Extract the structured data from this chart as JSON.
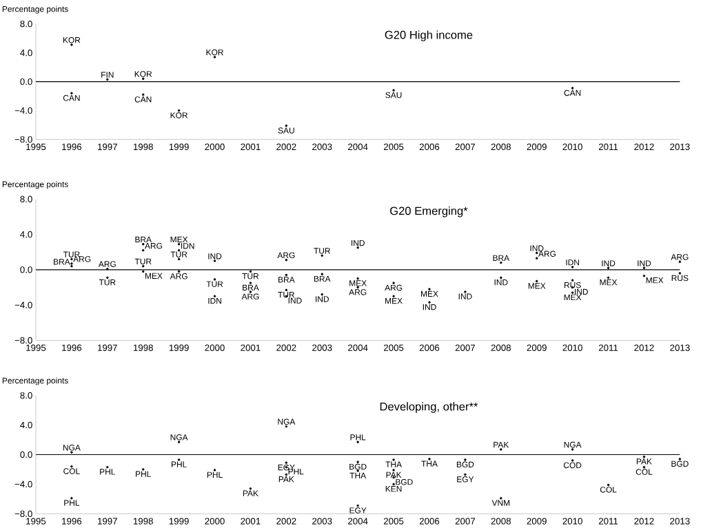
{
  "chart_data": [
    {
      "type": "scatter",
      "title": "G20 High income",
      "ylabel": "Percentage points",
      "marker": "circle",
      "x": [
        1996,
        1996,
        1997,
        1998,
        1998,
        1999,
        2000,
        2002,
        2005,
        2010
      ],
      "values": [
        5.1,
        -1.6,
        0.3,
        0.4,
        -1.8,
        -4.0,
        3.4,
        -6.1,
        -1.2,
        -0.9
      ],
      "xlim": [
        1995,
        2013
      ],
      "xticks": [
        1995,
        1996,
        1997,
        1998,
        1999,
        2000,
        2001,
        2002,
        2003,
        2004,
        2005,
        2006,
        2007,
        2008,
        2009,
        2010,
        2011,
        2012,
        2013
      ],
      "ylim": [
        -8,
        8
      ],
      "yticks": [
        {
          "value": -8,
          "label": "−8.0"
        },
        {
          "value": -4,
          "label": "−4.0"
        },
        {
          "value": 0,
          "label": "0.0"
        },
        {
          "value": 4,
          "label": "4.0"
        },
        {
          "value": 8,
          "label": "8.0"
        }
      ],
      "ref_lines": [
        {
          "axis": "y",
          "value": 0,
          "color": "#000000"
        }
      ],
      "annotations": [
        "KOR",
        "CAN",
        "FIN",
        "KOR",
        "CAN",
        "KOR",
        "KOR",
        "SAU",
        "SAU",
        "CAN"
      ]
    },
    {
      "type": "scatter",
      "title": "G20 Emerging*",
      "ylabel": "Percentage points",
      "marker": "circle",
      "x": [
        1996,
        1996,
        1996,
        1997,
        1997,
        1998,
        1998,
        1998,
        1998,
        1999,
        1999,
        1999,
        1999,
        2000,
        2000,
        2000,
        2001,
        2001,
        2001,
        2002,
        2002,
        2002,
        2002,
        2003,
        2003,
        2003,
        2004,
        2004,
        2004,
        2005,
        2005,
        2006,
        2006,
        2007,
        2008,
        2008,
        2009,
        2009,
        2009,
        2010,
        2010,
        2010,
        2010,
        2011,
        2011,
        2012,
        2012,
        2013,
        2013
      ],
      "values": [
        1.2,
        0.7,
        0.4,
        0.1,
        -0.9,
        2.9,
        2.2,
        0.4,
        -0.2,
        2.9,
        2.2,
        1.2,
        -0.2,
        1.0,
        -1.1,
        -3.0,
        -0.2,
        -1.5,
        -2.5,
        1.1,
        -0.6,
        -2.3,
        -3.0,
        1.6,
        -0.5,
        -2.8,
        2.5,
        -1.0,
        -2.0,
        -1.5,
        -3.0,
        -2.2,
        -3.7,
        -2.5,
        0.8,
        -0.9,
        1.9,
        1.3,
        -1.3,
        0.3,
        -1.2,
        -2.0,
        -2.6,
        0.2,
        -0.9,
        0.2,
        -0.7,
        0.9,
        -0.4
      ],
      "xlim": [
        1995,
        2013
      ],
      "xticks": [
        1995,
        1996,
        1997,
        1998,
        1999,
        2000,
        2001,
        2002,
        2003,
        2004,
        2005,
        2006,
        2007,
        2008,
        2009,
        2010,
        2011,
        2012,
        2013
      ],
      "ylim": [
        -8,
        8
      ],
      "yticks": [
        {
          "value": -8,
          "label": "−8.0"
        },
        {
          "value": -4,
          "label": "−4.0"
        },
        {
          "value": 0,
          "label": "0.0"
        },
        {
          "value": 4,
          "label": "4.0"
        },
        {
          "value": 8,
          "label": "8.0"
        }
      ],
      "ref_lines": [
        {
          "axis": "y",
          "value": 0,
          "color": "#000000"
        }
      ],
      "annotations": [
        "TUR",
        "ARG",
        "BRA",
        "ARG",
        "TUR",
        "BRA",
        "ARG",
        "TUR",
        "MEX",
        "MEX",
        "IDN",
        "TUR",
        "ARG",
        "IND",
        "TUR",
        "IDN",
        "TUR",
        "BRA",
        "ARG",
        "ARG",
        "BRA",
        "TUR",
        "IND",
        "TUR",
        "BRA",
        "IND",
        "IND",
        "MEX",
        "ARG",
        "ARG",
        "MEX",
        "MEX",
        "IND",
        "IND",
        "BRA",
        "IND",
        "IND",
        "ARG",
        "MEX",
        "IDN",
        "RUS",
        "IND",
        "MEX",
        "IND",
        "MEX",
        "IND",
        "MEX",
        "ARG",
        "RUS"
      ]
    },
    {
      "type": "scatter",
      "title": "Developing, other**",
      "ylabel": "Percentage points",
      "marker": "circle",
      "x": [
        1996,
        1996,
        1996,
        1997,
        1998,
        1999,
        1999,
        2000,
        2001,
        2002,
        2002,
        2002,
        2002,
        2004,
        2004,
        2004,
        2004,
        2005,
        2005,
        2005,
        2005,
        2006,
        2007,
        2007,
        2008,
        2008,
        2010,
        2010,
        2011,
        2012,
        2012,
        2013
      ],
      "values": [
        0.3,
        -1.6,
        -5.9,
        -1.7,
        -2.0,
        1.7,
        -0.7,
        -2.1,
        -4.6,
        3.8,
        -1.1,
        -1.7,
        -2.7,
        1.7,
        -1.0,
        -2.2,
        -6.9,
        -0.7,
        -2.1,
        -3.1,
        -4.0,
        -0.6,
        -0.7,
        -2.7,
        0.7,
        -5.9,
        0.7,
        -0.8,
        -4.1,
        -0.3,
        -1.7,
        -0.6
      ],
      "xlim": [
        1995,
        2013
      ],
      "xticks": [
        1995,
        1996,
        1997,
        1998,
        1999,
        2000,
        2001,
        2002,
        2003,
        2004,
        2005,
        2006,
        2007,
        2008,
        2009,
        2010,
        2011,
        2012,
        2013
      ],
      "ylim": [
        -8,
        8
      ],
      "yticks": [
        {
          "value": -8,
          "label": "−8.0"
        },
        {
          "value": -4,
          "label": "−4.0"
        },
        {
          "value": 0,
          "label": "0.0"
        },
        {
          "value": 4,
          "label": "4.0"
        },
        {
          "value": 8,
          "label": "8.0"
        }
      ],
      "ref_lines": [
        {
          "axis": "y",
          "value": 0,
          "color": "#000000"
        }
      ],
      "annotations": [
        "NGA",
        "COL",
        "PHL",
        "PHL",
        "PHL",
        "NGA",
        "PHL",
        "PHL",
        "PAK",
        "NGA",
        "EGY",
        "PHL",
        "PAK",
        "PHL",
        "BGD",
        "THA",
        "EGY",
        "THA",
        "PAK",
        "BGD",
        "KEN",
        "THA",
        "BGD",
        "EGY",
        "PAK",
        "VNM",
        "NGA",
        "COD",
        "COL",
        "PAK",
        "COL",
        "BGD"
      ]
    }
  ]
}
